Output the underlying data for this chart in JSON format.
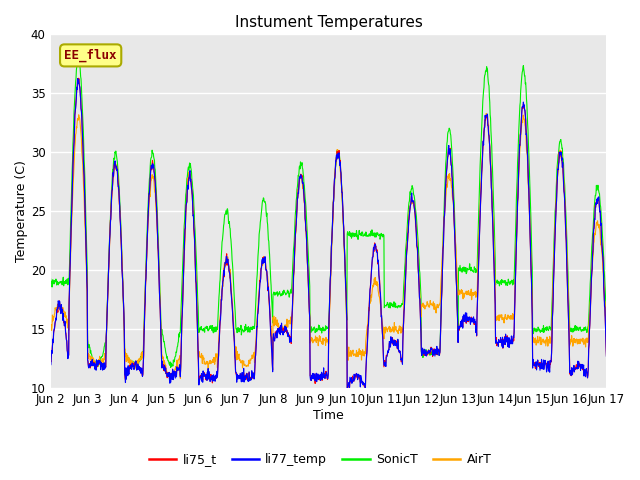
{
  "title": "Instument Temperatures",
  "xlabel": "Time",
  "ylabel": "Temperature (C)",
  "ylim": [
    10,
    40
  ],
  "plot_bg": "#E8E8E8",
  "fig_bg": "#FFFFFF",
  "colors": {
    "li75_t": "#FF0000",
    "li77_temp": "#0000FF",
    "SonicT": "#00EE00",
    "AirT": "#FFA500"
  },
  "annotation_text": "EE_flux",
  "annotation_fg": "#8B0000",
  "annotation_bg": "#FFFF88",
  "annotation_border": "#AAAA00",
  "xtick_labels": [
    "Jun 2",
    "Jun 3",
    "Jun 4",
    "Jun 5",
    "Jun 6",
    "Jun 7",
    "Jun 8",
    "Jun 9",
    "Jun 10",
    "Jun 11",
    "Jun 12",
    "Jun 13",
    "Jun 14",
    "Jun 15",
    "Jun 16",
    "Jun 17"
  ],
  "yticks": [
    10,
    15,
    20,
    25,
    30,
    35,
    40
  ],
  "legend_labels": [
    "li75_t",
    "li77_temp",
    "SonicT",
    "AirT"
  ],
  "day_peaks": {
    "li75_maxs": [
      17,
      36,
      12,
      29,
      12,
      29,
      11,
      28,
      11,
      21,
      11,
      21,
      15,
      28,
      11,
      30,
      11,
      22,
      14,
      26,
      13,
      30,
      16,
      33,
      14,
      34,
      12,
      30,
      12,
      26
    ],
    "li75_mins": [
      12,
      17,
      12,
      14,
      11,
      12,
      12,
      11,
      11,
      11,
      11,
      11,
      14,
      15,
      11,
      15,
      10,
      11,
      12,
      14,
      13,
      13,
      15,
      16,
      14,
      15,
      12,
      12,
      11,
      12
    ],
    "sonic_maxs": [
      19,
      38,
      12,
      30,
      12,
      30,
      12,
      29,
      15,
      25,
      15,
      26,
      18,
      29,
      15,
      30,
      23,
      23,
      17,
      27,
      13,
      32,
      20,
      37,
      19,
      37,
      15,
      31,
      15,
      27
    ],
    "sonic_mins": [
      19,
      19,
      14,
      14,
      13,
      13,
      15,
      15,
      15,
      15,
      15,
      15,
      18,
      18,
      15,
      15,
      23,
      23,
      17,
      17,
      13,
      13,
      20,
      20,
      19,
      19,
      15,
      15,
      15,
      15
    ],
    "air_maxs": [
      17,
      33,
      12,
      29,
      12,
      28,
      11,
      28,
      12,
      21,
      12,
      21,
      15,
      28,
      14,
      30,
      13,
      19,
      15,
      26,
      17,
      28,
      18,
      33,
      16,
      33,
      14,
      30,
      14,
      24
    ],
    "air_mins": [
      15,
      17,
      13,
      14,
      13,
      13,
      13,
      11,
      13,
      12,
      13,
      12,
      16,
      15,
      14,
      14,
      13,
      14,
      15,
      15,
      17,
      17,
      18,
      18,
      16,
      16,
      14,
      14,
      14,
      14
    ]
  }
}
